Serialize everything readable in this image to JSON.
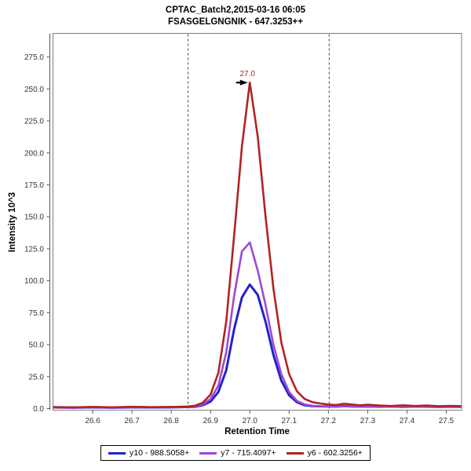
{
  "chart_data": {
    "type": "line",
    "title": "CPTAC_Batch2,2015-03-16 06:05",
    "subtitle": "FSASGELGNGNIK - 647.3253++",
    "xlabel": "Retention Time",
    "ylabel": "Intensity 10^3",
    "xlim": [
      26.499,
      27.539
    ],
    "ylim": [
      0,
      293.5
    ],
    "grid": false,
    "legend_position": "bottom",
    "x_ticks": [
      {
        "v": 26.6,
        "label": "26.6"
      },
      {
        "v": 26.7,
        "label": "26.7"
      },
      {
        "v": 26.8,
        "label": "26.8"
      },
      {
        "v": 26.9,
        "label": "26.9"
      },
      {
        "v": 27.0,
        "label": "27.0"
      },
      {
        "v": 27.1,
        "label": "27.1"
      },
      {
        "v": 27.2,
        "label": "27.2"
      },
      {
        "v": 27.3,
        "label": "27.3"
      },
      {
        "v": 27.4,
        "label": "27.4"
      },
      {
        "v": 27.5,
        "label": "27.5"
      }
    ],
    "y_ticks": [
      {
        "v": 0,
        "label": "0.0"
      },
      {
        "v": 25,
        "label": "25.0"
      },
      {
        "v": 50,
        "label": "50.0"
      },
      {
        "v": 75,
        "label": "75.0"
      },
      {
        "v": 100,
        "label": "100.0"
      },
      {
        "v": 125,
        "label": "125.0"
      },
      {
        "v": 150,
        "label": "150.0"
      },
      {
        "v": 175,
        "label": "175.0"
      },
      {
        "v": 200,
        "label": "200.0"
      },
      {
        "v": 225,
        "label": "225.0"
      },
      {
        "v": 250,
        "label": "250.0"
      },
      {
        "v": 275,
        "label": "275.0"
      }
    ],
    "integration_boundaries": {
      "start": 26.843,
      "end": 27.202,
      "line_style": "dashed",
      "color": "#404040"
    },
    "annotations": [
      {
        "text": "27.0",
        "x": 27.0,
        "y": 255,
        "color": "#B22222",
        "arrow": "black-right-pointer"
      }
    ],
    "x": [
      26.5,
      26.55,
      26.6,
      26.65,
      26.7,
      26.75,
      26.8,
      26.84,
      26.86,
      26.88,
      26.9,
      26.92,
      26.94,
      26.96,
      26.98,
      27.0,
      27.02,
      27.04,
      27.06,
      27.08,
      27.1,
      27.12,
      27.14,
      27.16,
      27.18,
      27.2,
      27.22,
      27.24,
      27.26,
      27.28,
      27.3,
      27.33,
      27.36,
      27.39,
      27.42,
      27.45,
      27.48,
      27.51,
      27.54
    ],
    "series": [
      {
        "name": "y10 - 988.5058+",
        "color": "#2222CE",
        "values": [
          0.9,
          0.8,
          1.0,
          0.8,
          1.0,
          0.9,
          1.0,
          1.2,
          1.5,
          2.6,
          5.5,
          13,
          30,
          62,
          87,
          97,
          89,
          68,
          42,
          22,
          10.5,
          5,
          2.6,
          2.0,
          1.8,
          1.7,
          1.6,
          1.9,
          1.7,
          1.6,
          1.7,
          1.5,
          1.6,
          1.4,
          1.6,
          1.5,
          1.4,
          1.5,
          1.4
        ]
      },
      {
        "name": "y7 - 715.4097+",
        "color": "#9B49D6",
        "values": [
          1.0,
          0.9,
          1.1,
          0.9,
          1.1,
          1.0,
          1.1,
          1.3,
          1.7,
          3.0,
          7.5,
          18,
          44,
          88,
          123,
          130,
          108,
          81,
          50,
          27,
          13,
          6,
          3.2,
          2.2,
          1.8,
          1.6,
          1.5,
          1.8,
          1.6,
          1.5,
          1.6,
          1.4,
          1.5,
          1.3,
          1.5,
          1.4,
          1.3,
          1.4,
          1.3
        ]
      },
      {
        "name": "y6 - 602.3256+",
        "color": "#B22222",
        "values": [
          1.2,
          1.0,
          1.3,
          1.0,
          1.4,
          1.1,
          1.3,
          1.6,
          2.2,
          4.5,
          11,
          28,
          68,
          135,
          205,
          255,
          213,
          150,
          94,
          52,
          27,
          13.5,
          7.5,
          5.0,
          4.0,
          3.2,
          2.8,
          3.8,
          3.2,
          2.6,
          3.0,
          2.4,
          2.0,
          2.6,
          2.0,
          2.4,
          1.9,
          2.1,
          1.9
        ]
      }
    ]
  },
  "frame": {
    "border_color": "#7f7f7f",
    "axis_color": "#5a5a5a",
    "tick_label_color": "#363636"
  }
}
